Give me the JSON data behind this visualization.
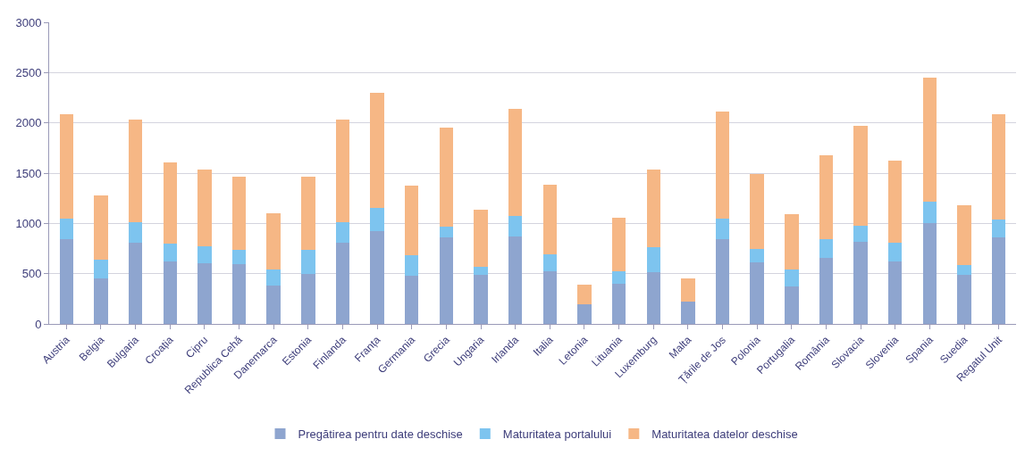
{
  "chart_data": {
    "type": "bar",
    "stacked": true,
    "categories": [
      "Austria",
      "Belgia",
      "Bulgaria",
      "Croația",
      "Cipru",
      "Republica Cehă",
      "Danemarca",
      "Estonia",
      "Finlanda",
      "Franța",
      "Germania",
      "Grecia",
      "Ungaria",
      "Irlanda",
      "Italia",
      "Letonia",
      "Lituania",
      "Luxemburg",
      "Malta",
      "Țările de Jos",
      "Polonia",
      "Portugalia",
      "România",
      "Slovacia",
      "Slovenia",
      "Spania",
      "Suedia",
      "Regatul Unit"
    ],
    "series": [
      {
        "name": "Pregătirea pentru date deschise",
        "color": "#8ea5cf",
        "values": [
          840,
          450,
          810,
          620,
          600,
          595,
          380,
          500,
          810,
          920,
          475,
          860,
          485,
          870,
          520,
          195,
          400,
          515,
          220,
          845,
          615,
          375,
          660,
          820,
          625,
          1000,
          485,
          860
        ]
      },
      {
        "name": "Maturitatea portalului",
        "color": "#7dc4ef",
        "values": [
          205,
          190,
          205,
          180,
          170,
          140,
          165,
          235,
          205,
          230,
          210,
          110,
          85,
          200,
          175,
          0,
          125,
          250,
          0,
          205,
          130,
          165,
          180,
          160,
          180,
          220,
          100,
          180
        ]
      },
      {
        "name": "Maturitatea datelor deschise",
        "color": "#f6b785",
        "values": [
          1045,
          635,
          1015,
          810,
          765,
          730,
          555,
          730,
          1015,
          1150,
          690,
          980,
          570,
          1070,
          690,
          200,
          530,
          770,
          230,
          1060,
          750,
          550,
          840,
          990,
          815,
          1230,
          595,
          1045
        ]
      }
    ],
    "ylim": [
      0,
      3000
    ],
    "yticks": [
      0,
      500,
      1000,
      1500,
      2000,
      2500,
      3000
    ],
    "grid": "y",
    "legend": "bottom"
  }
}
